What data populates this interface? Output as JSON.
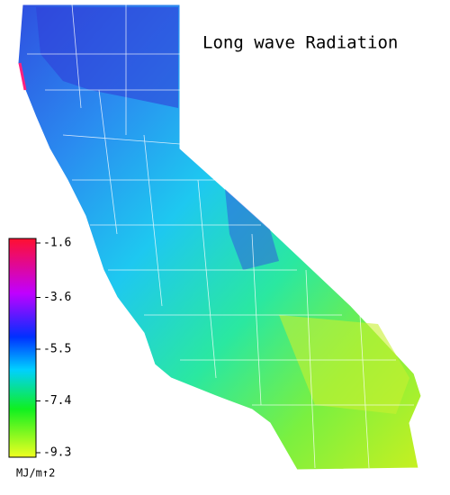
{
  "title": "Long wave Radiation",
  "colorbar": {
    "ticks": [
      -1.6,
      -3.6,
      -5.5,
      -7.4,
      -9.3
    ],
    "unit": "MJ/m↑2"
  }
}
